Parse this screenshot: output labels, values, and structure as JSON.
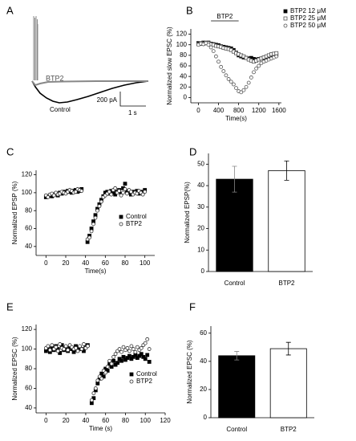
{
  "chart_data": [
    {
      "type": "trace",
      "panel": "A",
      "annotations": [
        "BTP2",
        "Control",
        "200 pA",
        "1 s"
      ]
    },
    {
      "type": "scatter",
      "panel": "B",
      "ylabel": "Normalized slow EPSC (%)",
      "xlabel": "Time(s)",
      "annotation": "BTP2",
      "annotation_span": [
        250,
        800
      ],
      "xlim": [
        -150,
        1650
      ],
      "xticks": [
        0,
        400,
        800,
        1200,
        1600
      ],
      "ylim": [
        -10,
        130
      ],
      "yticks": [
        0,
        20,
        40,
        60,
        80,
        100,
        120
      ],
      "legend": "upper right outside",
      "x": [
        0,
        50,
        100,
        150,
        200,
        250,
        300,
        350,
        400,
        450,
        500,
        550,
        600,
        650,
        700,
        750,
        800,
        850,
        900,
        950,
        1000,
        1050,
        1100,
        1150,
        1200,
        1250,
        1300,
        1350,
        1400,
        1450,
        1500,
        1550
      ],
      "series": [
        {
          "name": "BTP2 12 μM",
          "color": "#000000",
          "marker": "filled-square",
          "values": [
            103,
            102,
            104,
            103,
            104,
            102,
            101,
            100,
            99,
            97,
            96,
            95,
            94,
            93,
            90,
            85,
            80,
            78,
            76,
            75,
            74,
            75,
            73,
            72,
            73,
            74,
            75,
            76,
            78,
            79,
            80,
            81
          ]
        },
        {
          "name": "BTP2 25 μM",
          "color": "#555555",
          "marker": "open-square",
          "values": [
            101,
            103,
            102,
            104,
            103,
            101,
            100,
            98,
            97,
            96,
            94,
            93,
            92,
            90,
            87,
            84,
            82,
            80,
            78,
            75,
            72,
            70,
            68,
            70,
            72,
            74,
            76,
            78,
            80,
            82,
            83,
            84
          ]
        },
        {
          "name": "BTP2 50 μM",
          "color": "#555555",
          "marker": "open-circle",
          "values": [
            100,
            102,
            101,
            103,
            100,
            95,
            88,
            78,
            68,
            58,
            50,
            42,
            35,
            30,
            25,
            18,
            12,
            10,
            14,
            20,
            28,
            38,
            48,
            55,
            60,
            65,
            68,
            70,
            72,
            74,
            76,
            78
          ]
        }
      ]
    },
    {
      "type": "scatter",
      "panel": "C",
      "ylabel": "Normalized EPSP (%)",
      "xlabel": "Time(s)",
      "xlim": [
        -10,
        110
      ],
      "xticks": [
        0,
        20,
        40,
        60,
        80,
        100
      ],
      "ylim": [
        30,
        125
      ],
      "yticks": [
        40,
        60,
        80,
        100,
        120
      ],
      "legend": "lower right",
      "x": [
        0,
        2,
        4,
        6,
        8,
        10,
        12,
        14,
        16,
        18,
        20,
        22,
        24,
        26,
        28,
        30,
        32,
        34,
        36,
        42,
        44,
        46,
        48,
        50,
        52,
        54,
        56,
        58,
        60,
        62,
        64,
        66,
        68,
        70,
        72,
        74,
        76,
        78,
        80,
        82,
        84,
        86,
        88,
        90,
        92,
        94,
        96,
        98,
        100
      ],
      "series": [
        {
          "name": "Control",
          "color": "#000000",
          "marker": "filled-square",
          "values": [
            95,
            96,
            97,
            96,
            98,
            99,
            97,
            100,
            99,
            101,
            100,
            102,
            101,
            100,
            102,
            103,
            101,
            102,
            104,
            45,
            52,
            60,
            68,
            75,
            82,
            87,
            92,
            96,
            100,
            101,
            99,
            102,
            100,
            98,
            101,
            103,
            99,
            105,
            110,
            102,
            100,
            98,
            101,
            100,
            102,
            99,
            101,
            100,
            103
          ]
        },
        {
          "name": "BTP2",
          "color": "#333333",
          "marker": "open-circle",
          "values": [
            97,
            95,
            98,
            99,
            97,
            100,
            98,
            99,
            101,
            100,
            99,
            101,
            103,
            102,
            100,
            101,
            104,
            103,
            102,
            48,
            50,
            57,
            65,
            72,
            80,
            85,
            90,
            95,
            97,
            99,
            101,
            98,
            103,
            105,
            100,
            102,
            97,
            100,
            104,
            99,
            103,
            101,
            98,
            100,
            99,
            102,
            100,
            98,
            101
          ]
        }
      ]
    },
    {
      "type": "bar",
      "panel": "D",
      "ylabel": "Normalized EPSP(%)",
      "ylim": [
        0,
        55
      ],
      "yticks": [
        0,
        10,
        20,
        30,
        40,
        50
      ],
      "categories": [
        "Control",
        "BTP2"
      ],
      "values": [
        43,
        47
      ],
      "errors": [
        6,
        4.5
      ],
      "colors": [
        "#000000",
        "#ffffff"
      ]
    },
    {
      "type": "scatter",
      "panel": "E",
      "ylabel": "Normalized EPSC (%)",
      "xlabel": "Time (s)",
      "xlim": [
        -10,
        120
      ],
      "xticks": [
        0,
        20,
        40,
        60,
        80,
        100,
        120
      ],
      "ylim": [
        35,
        125
      ],
      "yticks": [
        40,
        60,
        80,
        100,
        120
      ],
      "legend": "lower right",
      "x": [
        0,
        2,
        4,
        6,
        8,
        10,
        12,
        14,
        16,
        18,
        20,
        22,
        24,
        26,
        28,
        30,
        32,
        34,
        36,
        38,
        40,
        42,
        46,
        48,
        50,
        52,
        54,
        56,
        58,
        60,
        62,
        64,
        66,
        68,
        70,
        72,
        74,
        76,
        78,
        80,
        82,
        84,
        86,
        88,
        90,
        92,
        94,
        96,
        98,
        100,
        102,
        104
      ],
      "series": [
        {
          "name": "Control",
          "color": "#000000",
          "marker": "filled-square",
          "values": [
            98,
            100,
            97,
            101,
            99,
            103,
            100,
            96,
            104,
            99,
            101,
            98,
            102,
            100,
            97,
            103,
            99,
            101,
            100,
            98,
            102,
            104,
            45,
            50,
            58,
            65,
            70,
            75,
            72,
            80,
            78,
            85,
            82,
            88,
            84,
            86,
            90,
            88,
            92,
            89,
            91,
            93,
            90,
            92,
            94,
            91,
            93,
            95,
            92,
            90,
            94,
            87
          ]
        },
        {
          "name": "BTP2",
          "color": "#333333",
          "marker": "open-circle",
          "values": [
            101,
            103,
            99,
            104,
            100,
            102,
            98,
            105,
            101,
            100,
            103,
            99,
            104,
            102,
            100,
            101,
            98,
            103,
            100,
            105,
            101,
            103,
            48,
            55,
            60,
            68,
            72,
            70,
            78,
            76,
            82,
            88,
            85,
            92,
            95,
            98,
            100,
            97,
            102,
            99,
            101,
            98,
            103,
            100,
            97,
            102,
            99,
            101,
            104,
            106,
            110,
            100
          ]
        }
      ]
    },
    {
      "type": "bar",
      "panel": "F",
      "ylabel": "Normalized EPSC (%)",
      "ylim": [
        0,
        65
      ],
      "yticks": [
        0,
        20,
        40,
        60
      ],
      "categories": [
        "Control",
        "BTP2"
      ],
      "values": [
        44,
        49
      ],
      "errors": [
        3,
        4.5
      ],
      "colors": [
        "#000000",
        "#ffffff"
      ]
    }
  ]
}
